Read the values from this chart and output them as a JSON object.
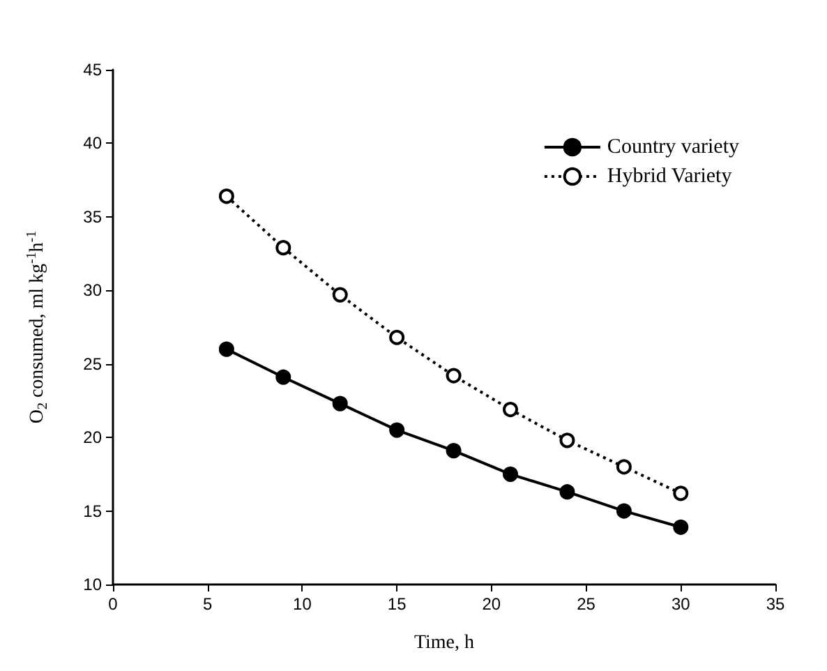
{
  "chart_data": {
    "type": "line",
    "xlabel": "Time, h",
    "ylabel": "O$_{2}$ consumed, ml kg$^{-1}$h$^{-1}$",
    "x": [
      6,
      9,
      12,
      15,
      18,
      21,
      24,
      27,
      30
    ],
    "series": [
      {
        "name": "Country variety",
        "color": "#000000",
        "values": [
          26.0,
          24.1,
          22.3,
          20.5,
          19.1,
          17.5,
          16.3,
          15.0,
          13.9
        ],
        "marker": "circle",
        "line_style": "solid"
      },
      {
        "name": "Hybrid Variety",
        "color": "#000000",
        "values": [
          36.4,
          32.9,
          29.7,
          26.8,
          24.2,
          21.9,
          19.8,
          18.0,
          16.2
        ],
        "marker": "circle",
        "line_style": "dotted"
      }
    ],
    "xlim": [
      0,
      35
    ],
    "xticks": [
      0,
      5,
      10,
      15,
      20,
      25,
      30,
      35
    ],
    "ylim": [
      10,
      45
    ],
    "yticks": [
      10,
      15,
      20,
      25,
      30,
      35,
      40,
      45
    ],
    "grid": false,
    "legend": "top right"
  }
}
